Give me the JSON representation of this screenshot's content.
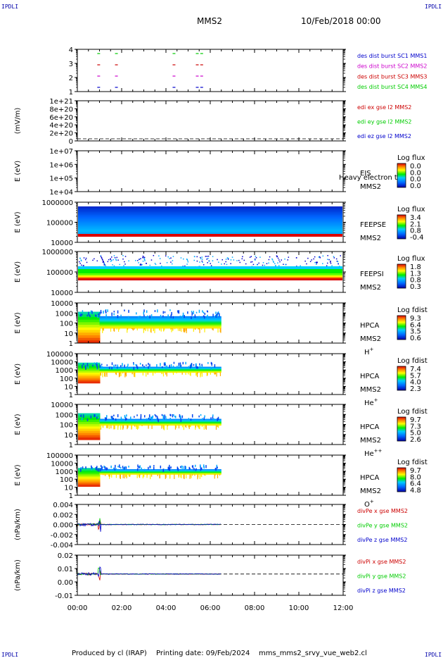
{
  "header": {
    "corner_left_top": "IPDLI",
    "corner_right_top": "IPDLI",
    "corner_left_bottom": "IPDLI",
    "corner_right_bottom": "IPDLI",
    "spacecraft": "MMS2",
    "datetime": "10/Feb/2018 00:00"
  },
  "footer": {
    "produced_by": "Produced by cl (IRAP)",
    "printing_date": "Printing date: 09/Feb/2024",
    "file": "mms_mms2_srvy_vue_web2.cl"
  },
  "x_axis": {
    "ticks": [
      "00:00",
      "02:00",
      "04:00",
      "06:00",
      "08:00",
      "10:00",
      "12:00"
    ],
    "range_hours": [
      0,
      12
    ]
  },
  "colors": {
    "blue": "#0000cc",
    "green": "#00cc00",
    "red": "#cc0000",
    "magenta": "#cc00cc"
  },
  "chart_data": [
    {
      "type": "scatter",
      "name": "burst",
      "y_ticks": [
        "4",
        "3",
        "2",
        "1"
      ],
      "legend": [
        {
          "text": "des dist burst SC1 MMS1",
          "color": "#0000cc"
        },
        {
          "text": "des dist burst SC2 MMS2",
          "color": "#cc00cc"
        },
        {
          "text": "des dist burst SC3 MMS3",
          "color": "#cc0000"
        },
        {
          "text": "des dist burst SC4 MMS4",
          "color": "#00cc00"
        }
      ],
      "burst_hours": [
        0.9,
        1.7,
        4.3,
        5.35,
        5.55
      ]
    },
    {
      "type": "line",
      "name": "edi",
      "ylabel": "(mV/m)",
      "y_ticks": [
        "1e+21",
        "8e+20",
        "6e+20",
        "4e+20",
        "2e+20",
        "0"
      ],
      "legend": [
        {
          "text": "edi ex gse l2 MMS2",
          "color": "#cc0000"
        },
        {
          "text": "edi ey gse l2 MMS2",
          "color": "#00cc00"
        },
        {
          "text": "edi ez gse l2 MMS2",
          "color": "#0000cc"
        }
      ]
    },
    {
      "type": "heatmap",
      "name": "eis",
      "ylabel": "E (eV)",
      "y_ticks": [
        "1e+07",
        "1e+06",
        "1e+05",
        "1e+04"
      ],
      "label": "EIS",
      "sc": "MMS2",
      "overlay": "Heavy electron to",
      "colorbar_title": "Log flux",
      "colorbar_ticks": [
        "0.0",
        "0.0",
        "0.0",
        "0.0"
      ]
    },
    {
      "type": "heatmap",
      "name": "feepse",
      "ylabel": "E (eV)",
      "y_ticks": [
        "1000000",
        "100000",
        "10000"
      ],
      "label": "FEEPSE",
      "sc": "MMS2",
      "colorbar_title": "Log flux",
      "colorbar_ticks": [
        "3.4",
        "2.1",
        "0.8",
        "-0.4"
      ]
    },
    {
      "type": "heatmap",
      "name": "feepsi",
      "ylabel": "E (eV)",
      "y_ticks": [
        "1000000",
        "100000",
        "10000"
      ],
      "label": "FEEPSI",
      "sc": "MMS2",
      "colorbar_title": "Log flux",
      "colorbar_ticks": [
        "1.8",
        "1.3",
        "0.8",
        "0.3"
      ]
    },
    {
      "type": "heatmap",
      "name": "hpca-h",
      "ylabel": "E (eV)",
      "y_ticks": [
        "10000",
        "1000",
        "100",
        "10",
        "1"
      ],
      "label": "HPCA",
      "sc": "MMS2",
      "species": "H",
      "species_sup": "+",
      "colorbar_title": "Log fdist",
      "colorbar_ticks": [
        "9.3",
        "6.4",
        "3.5",
        "0.6"
      ]
    },
    {
      "type": "heatmap",
      "name": "hpca-he",
      "ylabel": "E (eV)",
      "y_ticks": [
        "100000",
        "10000",
        "1000",
        "100",
        "10",
        "1"
      ],
      "label": "HPCA",
      "sc": "MMS2",
      "species": "He",
      "species_sup": "+",
      "colorbar_title": "Log fdist",
      "colorbar_ticks": [
        "7.4",
        "5.7",
        "4.0",
        "2.3"
      ]
    },
    {
      "type": "heatmap",
      "name": "hpca-hepp",
      "ylabel": "E (eV)",
      "y_ticks": [
        "10000",
        "1000",
        "100",
        "10",
        "1"
      ],
      "label": "HPCA",
      "sc": "MMS2",
      "species": "He",
      "species_sup": "++",
      "colorbar_title": "Log fdist",
      "colorbar_ticks": [
        "9.7",
        "7.3",
        "5.0",
        "2.6"
      ]
    },
    {
      "type": "heatmap",
      "name": "hpca-o",
      "ylabel": "E (eV)",
      "y_ticks": [
        "100000",
        "10000",
        "1000",
        "100",
        "10",
        "1"
      ],
      "label": "HPCA",
      "sc": "MMS2",
      "species": "O",
      "species_sup": "+",
      "colorbar_title": "Log fdist",
      "colorbar_ticks": [
        "9.7",
        "8.0",
        "6.4",
        "4.8"
      ]
    },
    {
      "type": "line",
      "name": "divpe",
      "ylabel": "(nPa/km)",
      "y_ticks": [
        "0.004",
        "0.002",
        "0.000",
        "-0.002",
        "-0.004"
      ],
      "legend": [
        {
          "text": "divPe x gse MMS2",
          "color": "#cc0000"
        },
        {
          "text": "divPe y gse MMS2",
          "color": "#00cc00"
        },
        {
          "text": "divPe z gse MMS2",
          "color": "#0000cc"
        }
      ]
    },
    {
      "type": "line",
      "name": "divpi",
      "ylabel": "(nPa/km)",
      "y_ticks": [
        "0.02",
        "0.01",
        "0.00",
        "-0.01"
      ],
      "legend": [
        {
          "text": "divPi x gse MMS2",
          "color": "#cc0000"
        },
        {
          "text": "divPi y gse MMS2",
          "color": "#00cc00"
        },
        {
          "text": "divPi z gse MMS2",
          "color": "#0000cc"
        }
      ]
    }
  ]
}
